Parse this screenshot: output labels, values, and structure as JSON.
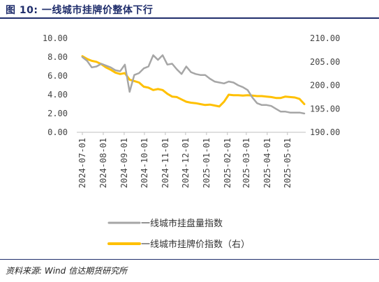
{
  "figure": {
    "title": "图 10: 一线城市挂牌价整体下行",
    "source": "资料来源: Wind 信达期货研究所"
  },
  "chart_data": {
    "type": "line",
    "title": "图 10: 一线城市挂牌价整体下行",
    "x": [
      "2024-07-01",
      "2024-07-08",
      "2024-07-15",
      "2024-07-22",
      "2024-07-29",
      "2024-08-05",
      "2024-08-12",
      "2024-08-19",
      "2024-08-26",
      "2024-09-02",
      "2024-09-09",
      "2024-09-16",
      "2024-09-23",
      "2024-09-30",
      "2024-10-07",
      "2024-10-14",
      "2024-10-21",
      "2024-10-28",
      "2024-11-04",
      "2024-11-11",
      "2024-11-18",
      "2024-11-25",
      "2024-12-02",
      "2024-12-09",
      "2024-12-16",
      "2024-12-23",
      "2024-12-30",
      "2025-01-06",
      "2025-01-13",
      "2025-01-20",
      "2025-01-27",
      "2025-02-03",
      "2025-02-10",
      "2025-02-17",
      "2025-02-24",
      "2025-03-03",
      "2025-03-10",
      "2025-03-17",
      "2025-03-24",
      "2025-03-31",
      "2025-04-07",
      "2025-04-14",
      "2025-04-21",
      "2025-04-28",
      "2025-05-05",
      "2025-05-12",
      "2025-05-19",
      "2025-05-26"
    ],
    "xticks": [
      "2024-07-01",
      "2024-08-01",
      "2024-09-01",
      "2024-10-01",
      "2024-11-01",
      "2024-12-01",
      "2025-01-01",
      "2025-02-01",
      "2025-03-01",
      "2025-04-01",
      "2025-05-01"
    ],
    "yticks_left": [
      "0.00",
      "2.00",
      "4.00",
      "6.00",
      "8.00",
      "10.00"
    ],
    "yticks_right": [
      "190.00",
      "195.00",
      "200.00",
      "205.00",
      "210.00"
    ],
    "ylim_left": [
      0,
      10
    ],
    "ylim_right": [
      190,
      210
    ],
    "grid": false,
    "legend_position": "bottom",
    "series": [
      {
        "name": "一线城市挂盘量指数",
        "axis": "left",
        "color": "#a6a6a6",
        "values": [
          8.0,
          7.6,
          6.9,
          7.0,
          7.3,
          7.1,
          6.9,
          6.6,
          6.5,
          7.2,
          4.3,
          6.1,
          6.3,
          6.8,
          7.0,
          8.2,
          7.7,
          8.2,
          7.2,
          7.3,
          6.7,
          6.2,
          7.0,
          6.4,
          6.2,
          6.1,
          6.1,
          5.7,
          5.4,
          5.3,
          5.2,
          5.4,
          5.3,
          5.0,
          4.8,
          4.5,
          3.7,
          3.1,
          2.9,
          2.9,
          2.8,
          2.5,
          2.2,
          2.2,
          2.1,
          2.1,
          2.1,
          2.0
        ]
      },
      {
        "name": "一线城市挂牌价指数（右）",
        "axis": "right",
        "color": "#ffc000",
        "values": [
          206.2,
          205.6,
          205.2,
          205.0,
          204.5,
          203.8,
          203.3,
          202.7,
          202.4,
          202.6,
          201.2,
          200.9,
          200.6,
          199.7,
          199.5,
          199.0,
          199.2,
          199.0,
          198.2,
          197.6,
          197.5,
          197.0,
          196.5,
          196.3,
          196.2,
          196.0,
          195.8,
          195.9,
          195.7,
          195.5,
          196.5,
          198.0,
          197.9,
          197.9,
          197.8,
          197.9,
          197.8,
          197.7,
          197.7,
          197.6,
          197.5,
          197.3,
          197.3,
          197.6,
          197.5,
          197.4,
          197.1,
          196.0
        ]
      }
    ]
  }
}
